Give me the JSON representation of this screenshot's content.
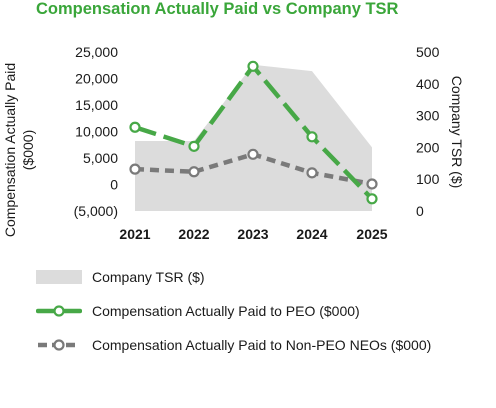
{
  "title": "Compensation Actually Paid vs Company TSR",
  "colors": {
    "title": "#3aa63a",
    "tsr_area": "#dcdcdc",
    "peo_line": "#47a847",
    "neo_line": "#7a7a7a",
    "marker_fill": "#ffffff",
    "text": "#1a1a1a"
  },
  "chart_data": {
    "type": "line",
    "title": "Compensation Actually Paid vs Company TSR",
    "categories": [
      "2021",
      "2022",
      "2023",
      "2024",
      "2025"
    ],
    "left_axis": {
      "label": "Compensation Actually Paid ($000)",
      "label_lines": [
        "Compensation Actually Paid",
        "($000)"
      ],
      "ylim": [
        -5000,
        25000
      ],
      "ticks": [
        25000,
        20000,
        15000,
        10000,
        5000,
        0,
        -5000
      ],
      "tick_labels": [
        "25,000",
        "20,000",
        "15,000",
        "10,000",
        "5,000",
        "0",
        "(5,000)"
      ]
    },
    "right_axis": {
      "label": "Company TSR ($)",
      "ylim": [
        0,
        500
      ],
      "ticks": [
        500,
        400,
        300,
        200,
        100,
        0
      ],
      "tick_labels": [
        "500",
        "400",
        "300",
        "200",
        "100",
        "0"
      ]
    },
    "series": [
      {
        "name": "Company TSR ($)",
        "type": "area",
        "axis": "right",
        "values": [
          220,
          220,
          460,
          440,
          200
        ]
      },
      {
        "name": "Compensation Actually Paid to PEO ($000)",
        "type": "line",
        "style": "dashed",
        "axis": "left",
        "values": [
          10800,
          7200,
          22300,
          9000,
          -2700
        ]
      },
      {
        "name": "Compensation Actually Paid to Non-PEO NEOs ($000)",
        "type": "line",
        "style": "dashed",
        "axis": "left",
        "values": [
          2900,
          2400,
          5700,
          2200,
          100
        ]
      }
    ],
    "grid": false,
    "legend": "bottom"
  },
  "legend": {
    "items": [
      {
        "label": "Company TSR ($)",
        "kind": "area"
      },
      {
        "label": "Compensation Actually Paid to PEO ($000)",
        "kind": "peo"
      },
      {
        "label": "Compensation Actually Paid to Non-PEO NEOs ($000)",
        "kind": "neo"
      }
    ]
  }
}
